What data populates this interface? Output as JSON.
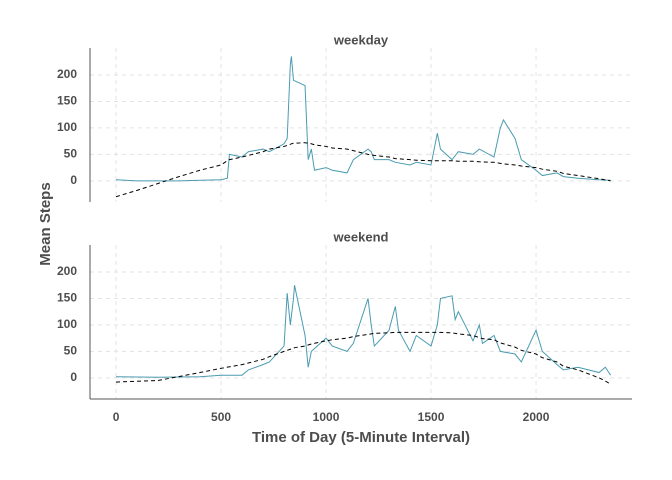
{
  "chart_data": [
    {
      "type": "line",
      "title": "weekday",
      "ylabel": "Mean Steps",
      "x": [
        0,
        100,
        200,
        300,
        400,
        500,
        530,
        540,
        600,
        630,
        700,
        730,
        800,
        815,
        830,
        835,
        845,
        900,
        915,
        930,
        945,
        1000,
        1030,
        1100,
        1130,
        1200,
        1215,
        1230,
        1300,
        1330,
        1400,
        1430,
        1500,
        1530,
        1545,
        1600,
        1630,
        1700,
        1730,
        1800,
        1830,
        1845,
        1900,
        1930,
        2000,
        2030,
        2100,
        2130,
        2200,
        2300,
        2355
      ],
      "series": [
        {
          "color": "#4a9bb0",
          "style": "solid",
          "values": [
            2,
            0,
            0,
            0,
            1,
            2,
            5,
            50,
            45,
            55,
            60,
            55,
            70,
            80,
            220,
            235,
            190,
            180,
            40,
            60,
            20,
            25,
            20,
            15,
            40,
            60,
            55,
            40,
            40,
            35,
            30,
            35,
            30,
            90,
            60,
            40,
            55,
            50,
            60,
            45,
            100,
            115,
            80,
            40,
            20,
            10,
            15,
            8,
            5,
            2,
            1
          ]
        },
        {
          "color": "#000000",
          "style": "dashed",
          "values": [
            -30,
            -18,
            -5,
            8,
            20,
            30,
            38,
            40,
            45,
            48,
            55,
            60,
            65,
            67,
            69,
            70,
            71,
            72,
            71,
            70,
            68,
            65,
            62,
            60,
            57,
            50,
            49,
            48,
            45,
            42,
            40,
            39,
            38,
            38,
            38,
            38,
            37,
            37,
            36,
            35,
            33,
            32,
            30,
            28,
            25,
            22,
            18,
            14,
            10,
            4,
            0
          ]
        }
      ],
      "xlim": [
        -124,
        2457
      ],
      "xticks": [
        0,
        500,
        1000,
        1500,
        2000
      ],
      "ylim": [
        -40,
        251
      ],
      "yticks": [
        0,
        50,
        100,
        150,
        200
      ],
      "grid": true
    },
    {
      "type": "line",
      "title": "weekend",
      "xlabel": "Time of Day (5-Minute Interval)",
      "x": [
        0,
        200,
        400,
        500,
        600,
        630,
        700,
        730,
        800,
        815,
        830,
        845,
        850,
        900,
        915,
        930,
        1000,
        1030,
        1100,
        1130,
        1200,
        1215,
        1230,
        1300,
        1330,
        1345,
        1400,
        1430,
        1500,
        1530,
        1545,
        1600,
        1615,
        1630,
        1700,
        1730,
        1745,
        1800,
        1830,
        1900,
        1930,
        2000,
        2030,
        2100,
        2130,
        2200,
        2300,
        2330,
        2355
      ],
      "series": [
        {
          "color": "#4a9bb0",
          "style": "solid",
          "values": [
            2,
            1,
            2,
            5,
            5,
            15,
            25,
            30,
            60,
            160,
            100,
            150,
            175,
            80,
            20,
            50,
            75,
            60,
            50,
            65,
            150,
            100,
            60,
            90,
            135,
            90,
            50,
            80,
            60,
            100,
            150,
            155,
            110,
            125,
            70,
            100,
            65,
            80,
            50,
            45,
            30,
            90,
            50,
            25,
            15,
            20,
            10,
            20,
            5
          ]
        },
        {
          "color": "#000000",
          "style": "dashed",
          "values": [
            -8,
            -5,
            10,
            18,
            25,
            28,
            35,
            40,
            50,
            52,
            54,
            56,
            57,
            60,
            62,
            64,
            70,
            72,
            75,
            78,
            82,
            83,
            84,
            85,
            86,
            86,
            86,
            86,
            86,
            86,
            86,
            85,
            84,
            83,
            80,
            76,
            74,
            72,
            66,
            58,
            52,
            45,
            38,
            30,
            22,
            15,
            0,
            -6,
            -12
          ]
        }
      ],
      "xlim": [
        -124,
        2457
      ],
      "xticks": [
        0,
        500,
        1000,
        1500,
        2000
      ],
      "ylim": [
        -40,
        251
      ],
      "yticks": [
        0,
        50,
        100,
        150,
        200
      ],
      "grid": true
    }
  ]
}
